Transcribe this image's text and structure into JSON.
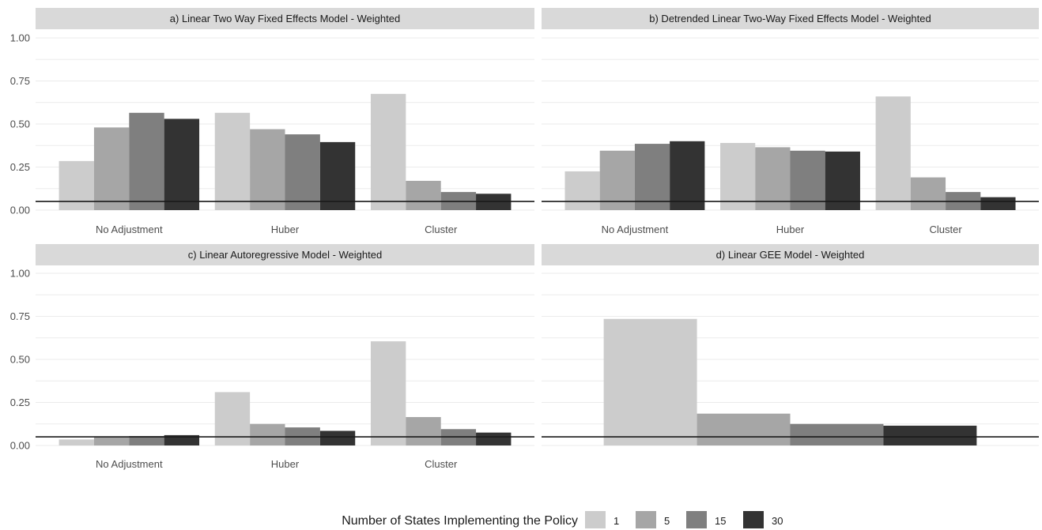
{
  "chart_data": [
    {
      "panel": "a",
      "type": "bar",
      "title": "a) Linear Two Way Fixed Effects Model - Weighted",
      "categories": [
        "No Adjustment",
        "Huber",
        "Cluster"
      ],
      "series": [
        {
          "name": "1",
          "values": [
            0.285,
            0.565,
            0.675
          ]
        },
        {
          "name": "5",
          "values": [
            0.48,
            0.47,
            0.17
          ]
        },
        {
          "name": "15",
          "values": [
            0.565,
            0.44,
            0.105
          ]
        },
        {
          "name": "30",
          "values": [
            0.53,
            0.395,
            0.095
          ]
        }
      ],
      "reference_line": 0.05,
      "ylim": [
        0,
        1
      ],
      "yticks": [
        "0.00",
        "0.25",
        "0.50",
        "0.75",
        "1.00"
      ]
    },
    {
      "panel": "b",
      "type": "bar",
      "title": "b) Detrended Linear Two-Way Fixed Effects Model - Weighted",
      "categories": [
        "No Adjustment",
        "Huber",
        "Cluster"
      ],
      "series": [
        {
          "name": "1",
          "values": [
            0.225,
            0.39,
            0.66
          ]
        },
        {
          "name": "5",
          "values": [
            0.345,
            0.365,
            0.19
          ]
        },
        {
          "name": "15",
          "values": [
            0.385,
            0.345,
            0.105
          ]
        },
        {
          "name": "30",
          "values": [
            0.4,
            0.34,
            0.075
          ]
        }
      ],
      "reference_line": 0.05,
      "ylim": [
        0,
        1
      ],
      "yticks": []
    },
    {
      "panel": "c",
      "type": "bar",
      "title": "c) Linear Autoregressive Model - Weighted",
      "categories": [
        "No Adjustment",
        "Huber",
        "Cluster"
      ],
      "series": [
        {
          "name": "1",
          "values": [
            0.035,
            0.31,
            0.605
          ]
        },
        {
          "name": "5",
          "values": [
            0.05,
            0.125,
            0.165
          ]
        },
        {
          "name": "15",
          "values": [
            0.055,
            0.105,
            0.095
          ]
        },
        {
          "name": "30",
          "values": [
            0.06,
            0.085,
            0.075
          ]
        }
      ],
      "reference_line": 0.05,
      "ylim": [
        0,
        1
      ],
      "yticks": [
        "0.00",
        "0.25",
        "0.50",
        "0.75",
        "1.00"
      ]
    },
    {
      "panel": "d",
      "type": "bar",
      "title": "d) Linear GEE Model - Weighted",
      "categories": [
        ""
      ],
      "series": [
        {
          "name": "1",
          "values": [
            0.735
          ]
        },
        {
          "name": "5",
          "values": [
            0.185
          ]
        },
        {
          "name": "15",
          "values": [
            0.125
          ]
        },
        {
          "name": "30",
          "values": [
            0.115
          ]
        }
      ],
      "reference_line": 0.05,
      "ylim": [
        0,
        1
      ],
      "yticks": []
    }
  ],
  "legend": {
    "title": "Number of States Implementing the Policy",
    "placement": "bottom",
    "items": [
      {
        "label": "1",
        "color": "#cccccc"
      },
      {
        "label": "5",
        "color": "#a6a6a6"
      },
      {
        "label": "15",
        "color": "#7f7f7f"
      },
      {
        "label": "30",
        "color": "#333333"
      }
    ]
  },
  "colors": {
    "strip_background": "#d9d9d9",
    "gridline": "#ebebeb",
    "reference_line": "#1a1a1a"
  }
}
